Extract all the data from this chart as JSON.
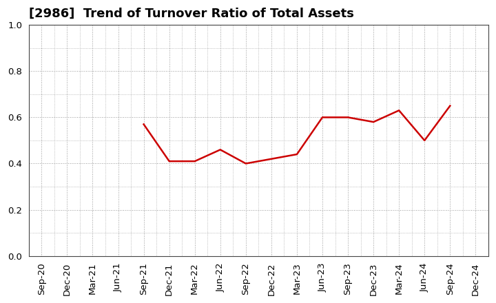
{
  "title": "[2986]  Trend of Turnover Ratio of Total Assets",
  "x_labels": [
    "Sep-20",
    "Dec-20",
    "Mar-21",
    "Jun-21",
    "Sep-21",
    "Dec-21",
    "Mar-22",
    "Jun-22",
    "Sep-22",
    "Dec-22",
    "Mar-23",
    "Jun-23",
    "Sep-23",
    "Dec-23",
    "Mar-24",
    "Jun-24",
    "Sep-24",
    "Dec-24"
  ],
  "x_values": [
    0,
    1,
    2,
    3,
    4,
    5,
    6,
    7,
    8,
    9,
    10,
    11,
    12,
    13,
    14,
    15,
    16,
    17
  ],
  "y_values": [
    null,
    null,
    null,
    null,
    0.57,
    0.41,
    0.41,
    0.46,
    0.4,
    0.42,
    0.44,
    0.6,
    0.6,
    0.58,
    0.63,
    0.5,
    0.65,
    null
  ],
  "line_color": "#cc0000",
  "line_width": 1.8,
  "ylim": [
    0.0,
    1.0
  ],
  "yticks": [
    0.0,
    0.2,
    0.4,
    0.6,
    0.8,
    1.0
  ],
  "grid_color": "#999999",
  "background_color": "#ffffff",
  "title_fontsize": 13,
  "tick_fontsize": 9.5
}
